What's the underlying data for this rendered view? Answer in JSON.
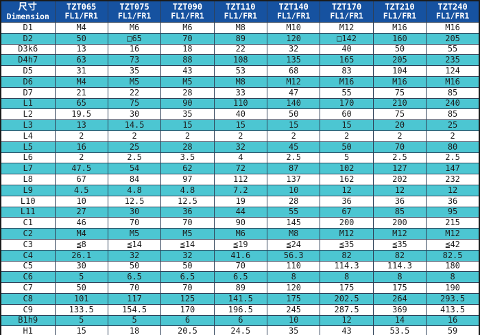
{
  "colors": {
    "header_bg": "#1652a0",
    "header_text": "#ffffff",
    "row_alt_bg": "#4cc6d2",
    "row_bg": "#ffffff",
    "cell_border": "#2e4057",
    "outer_border": "#1b1b1b",
    "body_text": "#1d1d1d"
  },
  "header": {
    "dim_zh": "尺寸",
    "dim_en": "Dimension",
    "columns": [
      {
        "model": "TZT065",
        "sub": "FL1/FR1"
      },
      {
        "model": "TZT075",
        "sub": "FL1/FR1"
      },
      {
        "model": "TZT090",
        "sub": "FL1/FR1"
      },
      {
        "model": "TZT110",
        "sub": "FL1/FR1"
      },
      {
        "model": "TZT140",
        "sub": "FL1/FR1"
      },
      {
        "model": "TZT170",
        "sub": "FL1/FR1"
      },
      {
        "model": "TZT210",
        "sub": "FL1/FR1"
      },
      {
        "model": "TZT240",
        "sub": "FL1/FR1"
      }
    ]
  },
  "rows": [
    {
      "label": "D1",
      "values": [
        "M4",
        "M6",
        "M6",
        "M8",
        "M10",
        "M12",
        "M16",
        "M16"
      ]
    },
    {
      "label": "D2",
      "values": [
        "50",
        "□65",
        "70",
        "89",
        "120",
        "□142",
        "160",
        "205"
      ]
    },
    {
      "label": "D3k6",
      "values": [
        "13",
        "16",
        "18",
        "22",
        "32",
        "40",
        "50",
        "55"
      ]
    },
    {
      "label": "D4h7",
      "values": [
        "63",
        "73",
        "88",
        "108",
        "135",
        "165",
        "205",
        "235"
      ]
    },
    {
      "label": "D5",
      "values": [
        "31",
        "35",
        "43",
        "53",
        "68",
        "83",
        "104",
        "124"
      ]
    },
    {
      "label": "D6",
      "values": [
        "M4",
        "M5",
        "M5",
        "M8",
        "M12",
        "M16",
        "M16",
        "M16"
      ]
    },
    {
      "label": "D7",
      "values": [
        "21",
        "22",
        "28",
        "33",
        "47",
        "55",
        "75",
        "85"
      ]
    },
    {
      "label": "L1",
      "values": [
        "65",
        "75",
        "90",
        "110",
        "140",
        "170",
        "210",
        "240"
      ]
    },
    {
      "label": "L2",
      "values": [
        "19.5",
        "30",
        "35",
        "40",
        "50",
        "60",
        "75",
        "85"
      ]
    },
    {
      "label": "L3",
      "values": [
        "13",
        "14.5",
        "15",
        "15",
        "15",
        "15",
        "20",
        "25"
      ]
    },
    {
      "label": "L4",
      "values": [
        "2",
        "2",
        "2",
        "2",
        "2",
        "2",
        "2",
        "2"
      ]
    },
    {
      "label": "L5",
      "values": [
        "16",
        "25",
        "28",
        "32",
        "45",
        "50",
        "70",
        "80"
      ]
    },
    {
      "label": "L6",
      "values": [
        "2",
        "2.5",
        "3.5",
        "4",
        "2.5",
        "5",
        "2.5",
        "2.5"
      ]
    },
    {
      "label": "L7",
      "values": [
        "47.5",
        "54",
        "62",
        "72",
        "87",
        "102",
        "127",
        "147"
      ]
    },
    {
      "label": "L8",
      "values": [
        "67",
        "84",
        "97",
        "112",
        "137",
        "162",
        "202",
        "232"
      ]
    },
    {
      "label": "L9",
      "values": [
        "4.5",
        "4.8",
        "4.8",
        "7.2",
        "10",
        "12",
        "12",
        "12"
      ]
    },
    {
      "label": "L10",
      "values": [
        "10",
        "12.5",
        "12.5",
        "19",
        "28",
        "36",
        "36",
        "36"
      ]
    },
    {
      "label": "L11",
      "values": [
        "27",
        "30",
        "36",
        "44",
        "55",
        "67",
        "85",
        "95"
      ]
    },
    {
      "label": "C1",
      "values": [
        "46",
        "70",
        "70",
        "90",
        "145",
        "200",
        "200",
        "215"
      ]
    },
    {
      "label": "C2",
      "values": [
        "M4",
        "M5",
        "M5",
        "M6",
        "M8",
        "M12",
        "M12",
        "M12"
      ]
    },
    {
      "label": "C3",
      "values": [
        "≦8",
        "≦14",
        "≦14",
        "≦19",
        "≦24",
        "≦35",
        "≦35",
        "≦42"
      ]
    },
    {
      "label": "C4",
      "values": [
        "26.1",
        "32",
        "32",
        "41.6",
        "56.3",
        "82",
        "82",
        "82.5"
      ]
    },
    {
      "label": "C5",
      "values": [
        "30",
        "50",
        "50",
        "70",
        "110",
        "114.3",
        "114.3",
        "180"
      ]
    },
    {
      "label": "C6",
      "values": [
        "5",
        "6.5",
        "6.5",
        "6.5",
        "8",
        "8",
        "8",
        "8"
      ]
    },
    {
      "label": "C7",
      "values": [
        "50",
        "70",
        "70",
        "89",
        "120",
        "175",
        "175",
        "190"
      ]
    },
    {
      "label": "C8",
      "values": [
        "101",
        "117",
        "125",
        "141.5",
        "175",
        "202.5",
        "264",
        "293.5"
      ]
    },
    {
      "label": "C9",
      "values": [
        "133.5",
        "154.5",
        "170",
        "196.5",
        "245",
        "287.5",
        "369",
        "413.5"
      ]
    },
    {
      "label": "B1h9",
      "values": [
        "5",
        "5",
        "6",
        "6",
        "10",
        "12",
        "14",
        "16"
      ]
    },
    {
      "label": "H1",
      "values": [
        "15",
        "18",
        "20.5",
        "24.5",
        "35",
        "43",
        "53.5",
        "59"
      ]
    }
  ]
}
